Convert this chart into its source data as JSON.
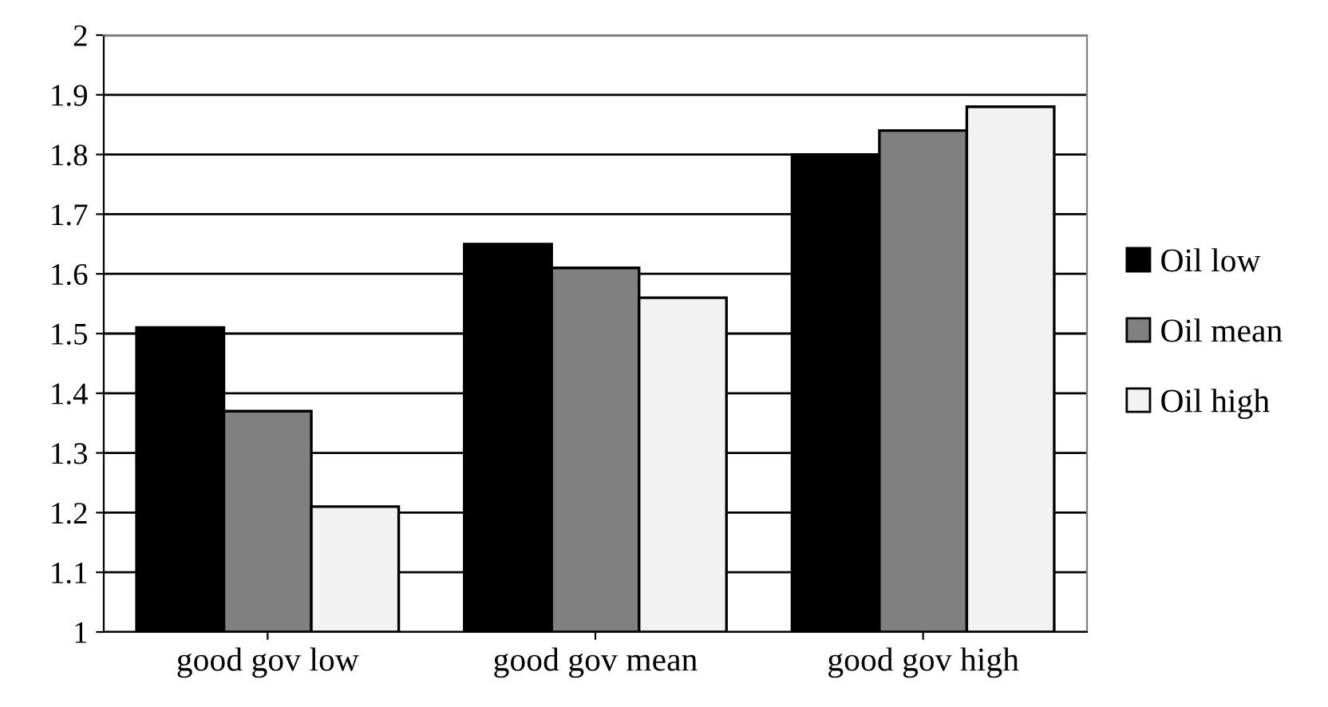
{
  "chart_data": {
    "type": "bar",
    "categories": [
      "good gov low",
      "good gov mean",
      "good gov high"
    ],
    "series": [
      {
        "name": "Oil low",
        "color": "#000000",
        "values": [
          1.51,
          1.65,
          1.8
        ]
      },
      {
        "name": "Oil mean",
        "color": "#808080",
        "values": [
          1.37,
          1.61,
          1.84
        ]
      },
      {
        "name": "Oil high",
        "color": "#f2f2f2",
        "values": [
          1.21,
          1.56,
          1.88
        ]
      }
    ],
    "ylim": [
      1,
      2
    ],
    "yticks": [
      1,
      1.1,
      1.2,
      1.3,
      1.4,
      1.5,
      1.6,
      1.7,
      1.8,
      1.9,
      2
    ],
    "grid": "y",
    "legend": "right"
  }
}
